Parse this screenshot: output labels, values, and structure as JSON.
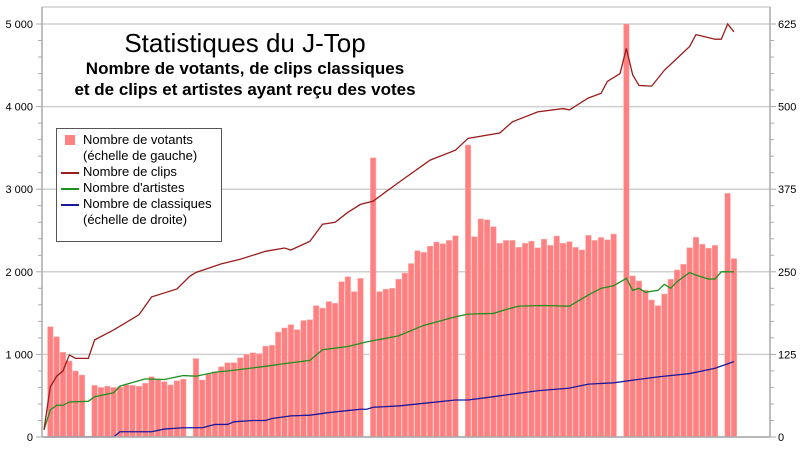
{
  "chart_data": {
    "type": "bar+line",
    "title": "Statistiques du J-Top",
    "subtitle": [
      "Nombre de votants, de clips classiques",
      "et de clips et artistes ayant reçu des votes"
    ],
    "xlabel": "",
    "ylabel_left": "",
    "ylabel_right": "",
    "ylim_left": [
      0,
      5000
    ],
    "ylim_right": [
      0,
      625
    ],
    "left_ticks": [
      {
        "v": 0,
        "label": "0"
      },
      {
        "v": 1000,
        "label": "1 000"
      },
      {
        "v": 2000,
        "label": "2 000"
      },
      {
        "v": 3000,
        "label": "3 000"
      },
      {
        "v": 4000,
        "label": "4 000"
      },
      {
        "v": 5000,
        "label": "5 000"
      }
    ],
    "right_ticks": [
      {
        "v": 0,
        "label": "0"
      },
      {
        "v": 125,
        "label": "125"
      },
      {
        "v": 250,
        "label": "250"
      },
      {
        "v": 375,
        "label": "375"
      },
      {
        "v": 500,
        "label": "500"
      },
      {
        "v": 625,
        "label": "625"
      }
    ],
    "grid": true,
    "legend_position": "left",
    "n_points": 110,
    "colors": {
      "votants": "#ff8080",
      "clips": "#9b1c1c",
      "artistes": "#1f8f1f",
      "classiques": "#1a1a9c"
    },
    "legend": [
      {
        "key": "votants",
        "label": "Nombre de votants",
        "label2": "(échelle de gauche)"
      },
      {
        "key": "clips",
        "label": "Nombre de clips"
      },
      {
        "key": "artistes",
        "label": "Nombre d'artistes"
      },
      {
        "key": "classiques",
        "label": "Nombre de classiques",
        "label2": "(échelle de droite)"
      }
    ],
    "votants": [
      null,
      1335,
      1214,
      1025,
      920,
      799,
      750,
      null,
      625,
      600,
      615,
      600,
      605,
      630,
      625,
      615,
      650,
      730,
      690,
      670,
      630,
      680,
      700,
      null,
      950,
      690,
      760,
      790,
      850,
      900,
      900,
      960,
      1000,
      1020,
      1010,
      1100,
      1110,
      1270,
      1320,
      1360,
      1300,
      1410,
      1420,
      1590,
      1560,
      1640,
      1620,
      1880,
      1940,
      1760,
      1920,
      null,
      3380,
      1760,
      1790,
      1800,
      1910,
      1985,
      2100,
      2255,
      2235,
      2310,
      2360,
      2340,
      2380,
      2437,
      null,
      3535,
      2425,
      2640,
      2630,
      2546,
      2345,
      2380,
      2380,
      2296,
      2345,
      2370,
      2290,
      2395,
      2320,
      2433,
      2345,
      2365,
      2296,
      2265,
      2441,
      2380,
      2415,
      2387,
      2457,
      null,
      5000,
      1950,
      1889,
      1780,
      1659,
      1590,
      1731,
      1909,
      2022,
      2091,
      2292,
      2418,
      2333,
      2285,
      2320,
      null,
      2950,
      2160
    ],
    "clips": [
      [
        0,
        11
      ],
      [
        1,
        76
      ],
      [
        2,
        92
      ],
      [
        3,
        100
      ],
      [
        4,
        124
      ],
      [
        5,
        119
      ],
      [
        7,
        119
      ],
      [
        8,
        147
      ],
      [
        11,
        162
      ],
      [
        15,
        185
      ],
      [
        17,
        212
      ],
      [
        21,
        224
      ],
      [
        23,
        243
      ],
      [
        24,
        249
      ],
      [
        28,
        262
      ],
      [
        31,
        269
      ],
      [
        35,
        281
      ],
      [
        38,
        286
      ],
      [
        39,
        283
      ],
      [
        42,
        296
      ],
      [
        44,
        322
      ],
      [
        46,
        325
      ],
      [
        48,
        340
      ],
      [
        50,
        352
      ],
      [
        52,
        357
      ],
      [
        56,
        385
      ],
      [
        61,
        419
      ],
      [
        65,
        434
      ],
      [
        67,
        452
      ],
      [
        72,
        460
      ],
      [
        74,
        477
      ],
      [
        78,
        492
      ],
      [
        82,
        497
      ],
      [
        83,
        495
      ],
      [
        86,
        513
      ],
      [
        88,
        520
      ],
      [
        89,
        538
      ],
      [
        91,
        550
      ],
      [
        92,
        588
      ],
      [
        93,
        548
      ],
      [
        94,
        532
      ],
      [
        96,
        531
      ],
      [
        98,
        555
      ],
      [
        100,
        573
      ],
      [
        102,
        591
      ],
      [
        103,
        609
      ],
      [
        106,
        602
      ],
      [
        107,
        602
      ],
      [
        108,
        625
      ],
      [
        109,
        613
      ]
    ],
    "artistes": [
      [
        0,
        11
      ],
      [
        1,
        41
      ],
      [
        2,
        48
      ],
      [
        3,
        48
      ],
      [
        4,
        53
      ],
      [
        7,
        54
      ],
      [
        8,
        61
      ],
      [
        11,
        67
      ],
      [
        12,
        77
      ],
      [
        16,
        88
      ],
      [
        19,
        87
      ],
      [
        22,
        93
      ],
      [
        24,
        92
      ],
      [
        27,
        98
      ],
      [
        30,
        101
      ],
      [
        35,
        107
      ],
      [
        38,
        111
      ],
      [
        42,
        116
      ],
      [
        44,
        132
      ],
      [
        48,
        137
      ],
      [
        51,
        144
      ],
      [
        56,
        153
      ],
      [
        60,
        169
      ],
      [
        62,
        174
      ],
      [
        65,
        182
      ],
      [
        67,
        186
      ],
      [
        71,
        187
      ],
      [
        73,
        193
      ],
      [
        75,
        198
      ],
      [
        79,
        199
      ],
      [
        83,
        198
      ],
      [
        86,
        215
      ],
      [
        88,
        225
      ],
      [
        90,
        229
      ],
      [
        92,
        240
      ],
      [
        93,
        222
      ],
      [
        94,
        225
      ],
      [
        95,
        219
      ],
      [
        97,
        222
      ],
      [
        98,
        231
      ],
      [
        99,
        225
      ],
      [
        100,
        235
      ],
      [
        102,
        249
      ],
      [
        103,
        245
      ],
      [
        105,
        239
      ],
      [
        106,
        239
      ],
      [
        107,
        250
      ],
      [
        109,
        250
      ]
    ],
    "classiques": [
      [
        0,
        0
      ],
      [
        11,
        0
      ],
      [
        12,
        8
      ],
      [
        17,
        8
      ],
      [
        19,
        12
      ],
      [
        22,
        14
      ],
      [
        25,
        14
      ],
      [
        27,
        19
      ],
      [
        29,
        19
      ],
      [
        30,
        23
      ],
      [
        33,
        25
      ],
      [
        35,
        25
      ],
      [
        36,
        28
      ],
      [
        39,
        32
      ],
      [
        42,
        33
      ],
      [
        45,
        37
      ],
      [
        48,
        40
      ],
      [
        50,
        42
      ],
      [
        51,
        42
      ],
      [
        52,
        45
      ],
      [
        56,
        47
      ],
      [
        60,
        51
      ],
      [
        65,
        56
      ],
      [
        67,
        56
      ],
      [
        71,
        61
      ],
      [
        74,
        65
      ],
      [
        78,
        70
      ],
      [
        83,
        74
      ],
      [
        86,
        80
      ],
      [
        90,
        82
      ],
      [
        93,
        86
      ],
      [
        97,
        91
      ],
      [
        102,
        96
      ],
      [
        105,
        102
      ],
      [
        106,
        104
      ],
      [
        109,
        114
      ]
    ]
  }
}
